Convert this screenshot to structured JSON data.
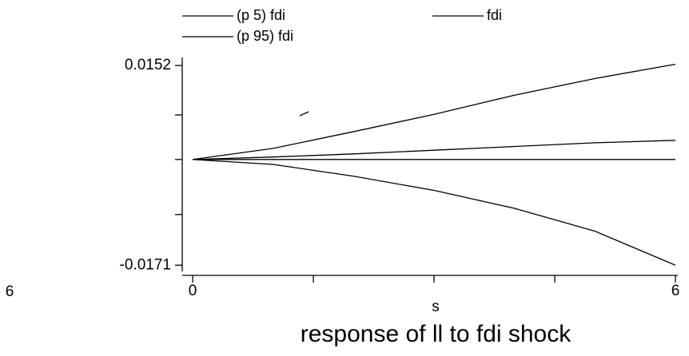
{
  "chart_data": {
    "type": "line",
    "title": "response of ll to fdi shock",
    "x_label": "s",
    "annotation": "6",
    "x": [
      0,
      1,
      2,
      3,
      4,
      5,
      6
    ],
    "series": [
      {
        "name": "(p 5) fdi",
        "color": "#000000",
        "values": [
          0,
          -0.0008,
          -0.0027,
          -0.005,
          -0.0079,
          -0.0116,
          -0.0171
        ]
      },
      {
        "name": "fdi",
        "color": "#000000",
        "values": [
          0,
          0.0004,
          0.0009,
          0.0015,
          0.0021,
          0.0027,
          0.0031
        ]
      },
      {
        "name": "(p 95) fdi",
        "color": "#000000",
        "values": [
          0,
          0.0018,
          0.0045,
          0.0073,
          0.0104,
          0.0131,
          0.0154
        ]
      }
    ],
    "yline": 0,
    "xlim": [
      -0.13,
      6.03
    ],
    "ylim": [
      -0.0181,
      0.0165
    ],
    "xticks": [
      0,
      6
    ],
    "xminorticks": [
      1.5,
      3,
      4.5
    ],
    "yticks": [
      -0.0171,
      0.0152
    ],
    "yminorticks": [
      -0.0089,
      0,
      0.0072
    ],
    "grid": false
  }
}
